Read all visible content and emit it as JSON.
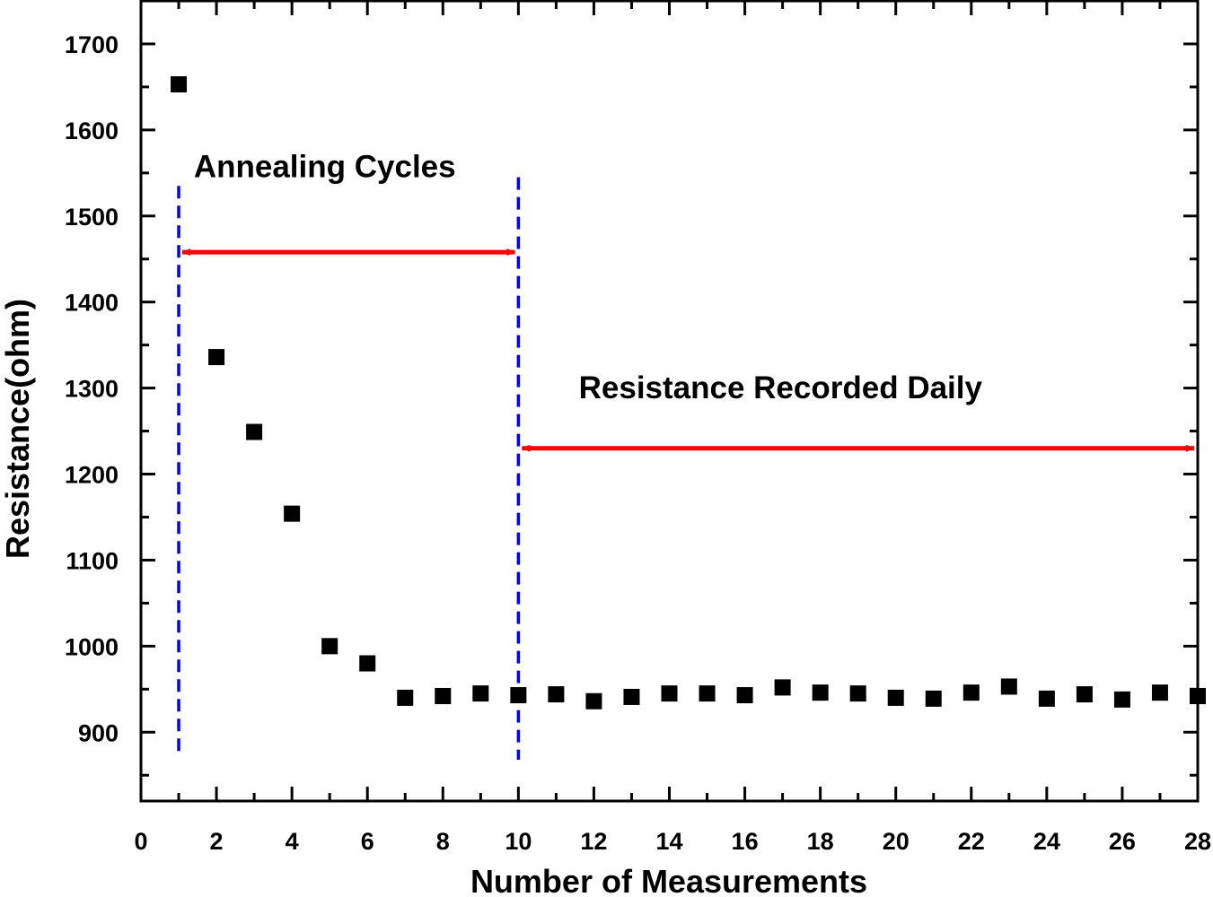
{
  "chart_data": {
    "type": "scatter",
    "title": "",
    "xlabel": "Number of Measurements",
    "ylabel": "Resistance(ohm)",
    "xlim": [
      0,
      28
    ],
    "ylim": [
      820,
      1750
    ],
    "xticks": [
      0,
      2,
      4,
      6,
      8,
      10,
      12,
      14,
      16,
      18,
      20,
      22,
      24,
      26,
      28
    ],
    "yticks": [
      900,
      1000,
      1100,
      1200,
      1300,
      1400,
      1500,
      1600,
      1700
    ],
    "grid": false,
    "marker": "square",
    "marker_color": "#000000",
    "series": [
      {
        "name": "Resistance",
        "x": [
          1,
          2,
          3,
          4,
          5,
          6,
          7,
          8,
          9,
          10,
          11,
          12,
          13,
          14,
          15,
          16,
          17,
          18,
          19,
          20,
          21,
          22,
          23,
          24,
          25,
          26,
          27,
          28
        ],
        "values": [
          1653,
          1336,
          1249,
          1154,
          1000,
          980,
          940,
          942,
          945,
          943,
          944,
          936,
          941,
          945,
          945,
          943,
          952,
          946,
          945,
          940,
          939,
          946,
          953,
          939,
          944,
          938,
          946,
          942
        ]
      }
    ],
    "annotations": {
      "annealing_label": "Annealing Cycles",
      "daily_label": "Resistance Recorded Daily",
      "annealing_range": {
        "x_start": 1,
        "x_end": 10,
        "arrow_y": 1458,
        "label_x": 1.4,
        "label_y": 1545
      },
      "daily_range": {
        "x_start": 10,
        "x_end": 28,
        "arrow_y": 1230,
        "label_x": 11.6,
        "label_y": 1288
      },
      "divider_lines": [
        {
          "x": 1,
          "y_top": 1535,
          "y_bottom": 870
        },
        {
          "x": 10,
          "y_top": 1545,
          "y_bottom": 868
        }
      ],
      "arrow_color": "#ff0000",
      "divider_color": "#0000ff"
    }
  }
}
